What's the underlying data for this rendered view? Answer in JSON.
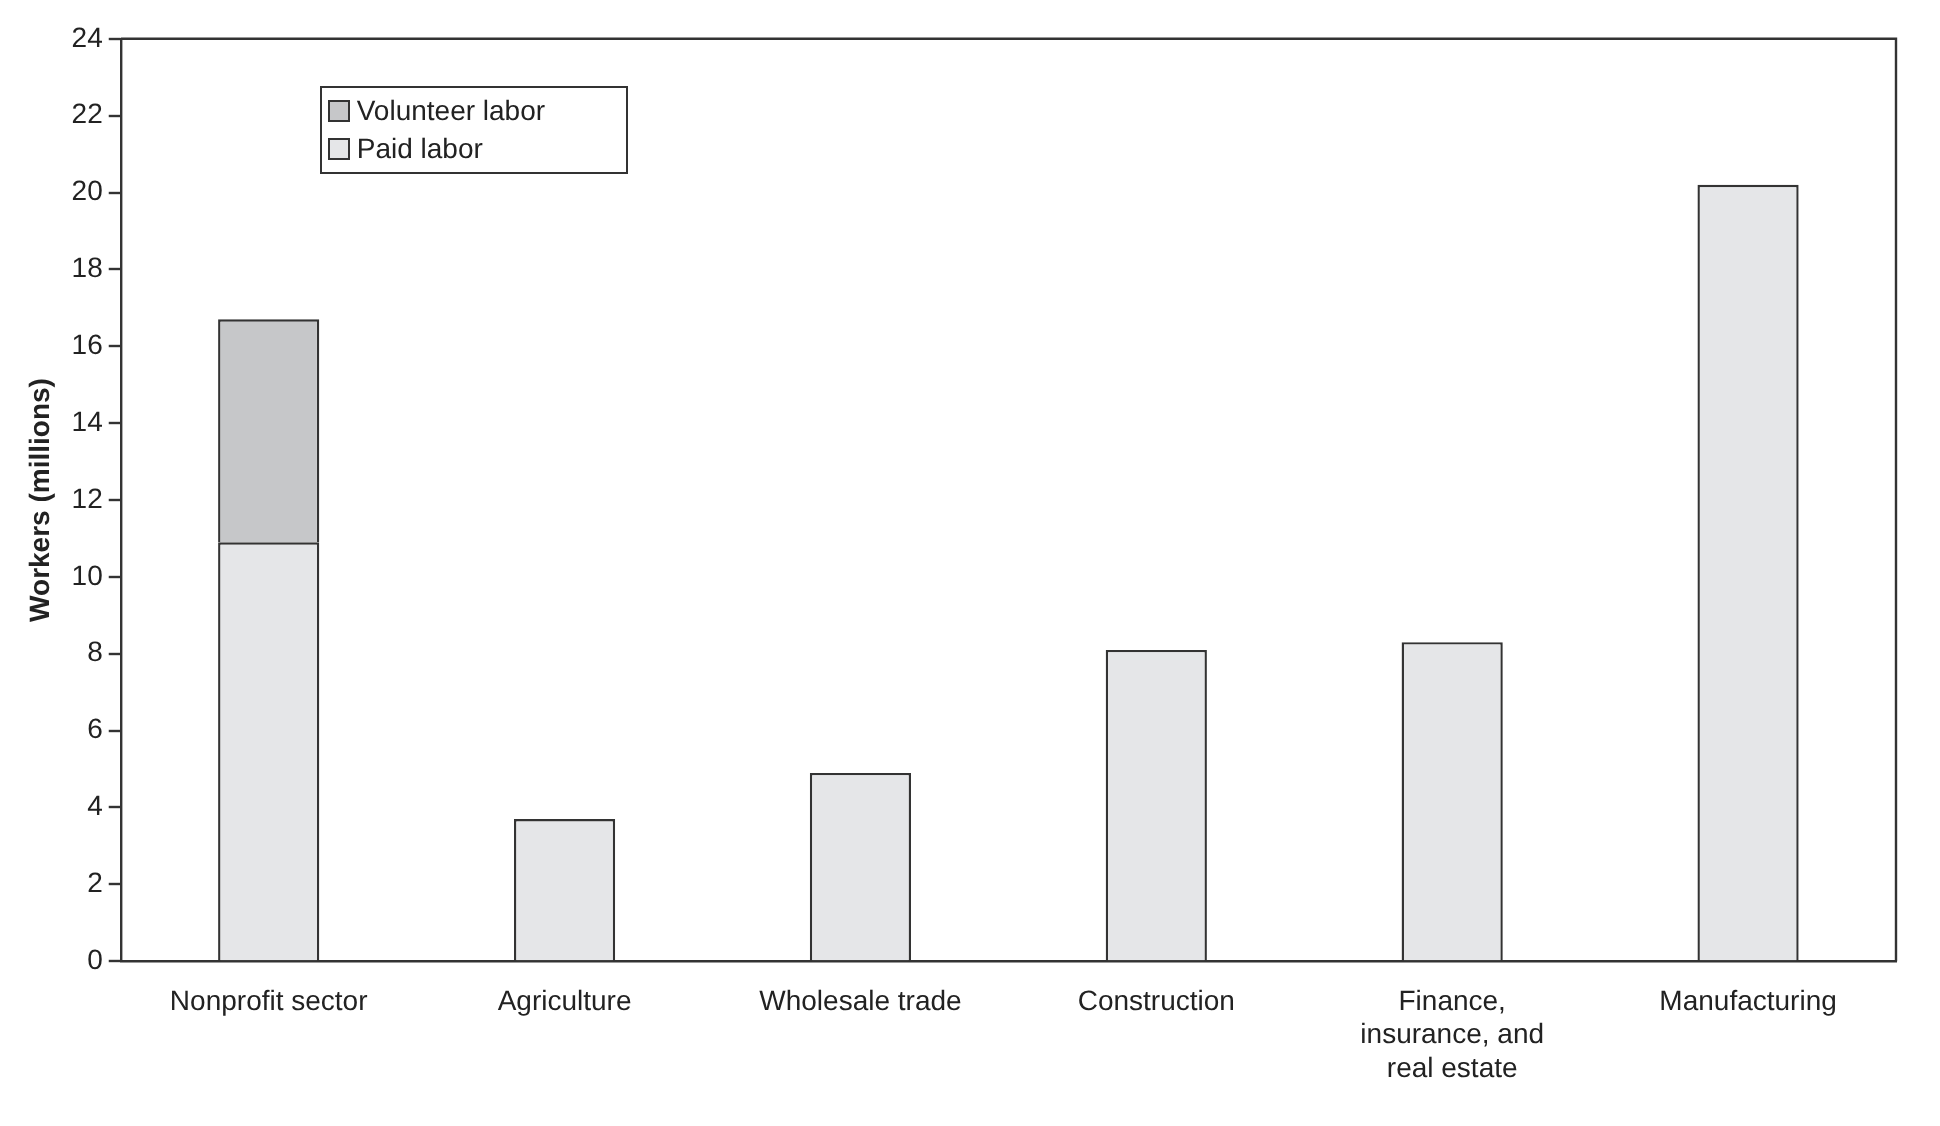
{
  "chart_data": {
    "type": "bar",
    "stacked": true,
    "ylabel": "Workers (millions)",
    "categories": [
      "Nonprofit sector",
      "Agriculture",
      "Wholesale trade",
      "Construction",
      "Finance, insurance, and real estate",
      "Manufacturing"
    ],
    "series": [
      {
        "name": "Paid labor",
        "color": "#e5e6e8",
        "values": [
          10.9,
          3.7,
          4.9,
          8.1,
          8.3,
          20.2
        ]
      },
      {
        "name": "Volunteer labor",
        "color": "#c6c7c9",
        "values": [
          5.8,
          null,
          null,
          null,
          null,
          null
        ]
      }
    ],
    "ylim": [
      0,
      24
    ],
    "yticks": [
      0,
      2,
      4,
      6,
      8,
      10,
      12,
      14,
      16,
      18,
      20,
      22,
      24
    ],
    "grid": false,
    "legend": "top left"
  }
}
